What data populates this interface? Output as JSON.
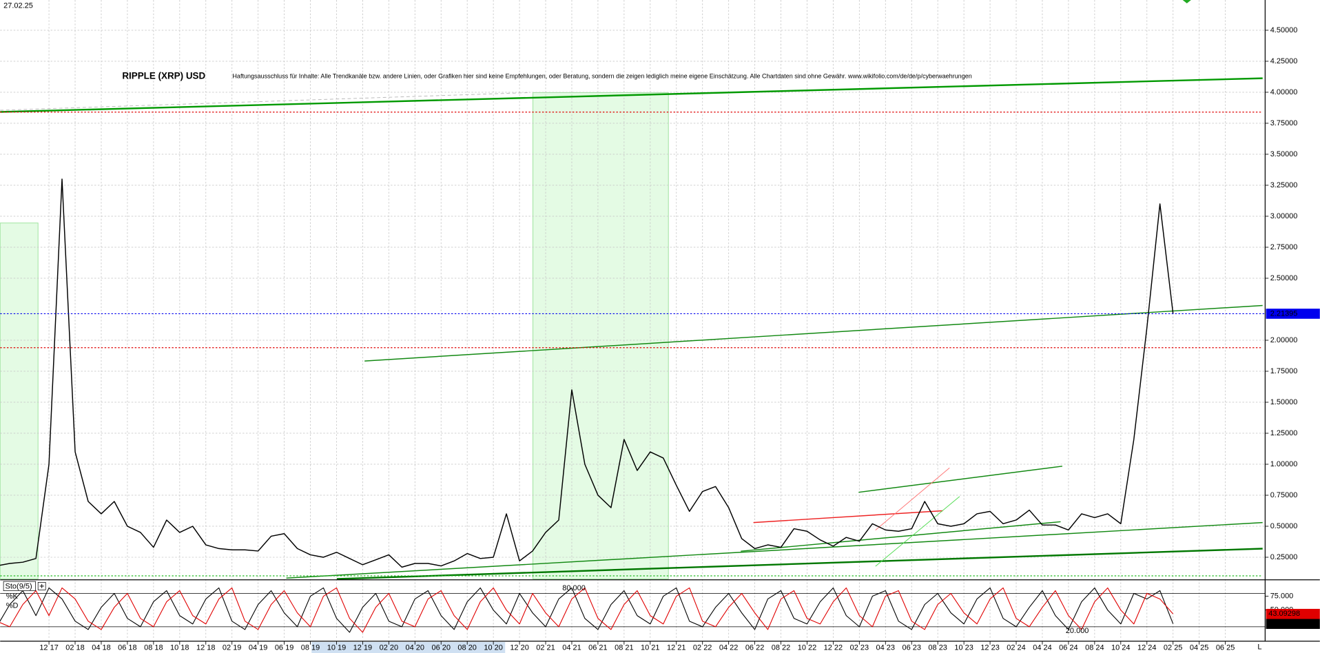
{
  "chart_data": {
    "type": "line",
    "date": "27.02.25",
    "title": "RIPPLE (XRP) USD",
    "disclaimer": "Haftungsausschluss für Inhalte: Alle Trendkanäle bzw. andere Linien, oder Grafiken hier sind keine Empfehlungen, oder Beratung, sondern die zeigen lediglich meine eigene Einschätzung. Alle Chartdaten sind ohne Gewähr. www.wikifolio.com/de/de/p/cyberwaehrungen",
    "categories": [
      null,
      null,
      null,
      null,
      "12 17",
      null,
      "02 18",
      null,
      "04 18",
      null,
      "06 18",
      null,
      "08 18",
      null,
      "10 18",
      null,
      "12 18",
      null,
      "02 19",
      null,
      "04 19",
      null,
      "06 19",
      null,
      "08 19",
      null,
      "10 19",
      null,
      "12 19",
      null,
      "02 20",
      null,
      "04 20",
      null,
      "06 20",
      null,
      "08 20",
      null,
      "10 20",
      null,
      "12 20",
      null,
      "02 21",
      null,
      "04 21",
      null,
      "06 21",
      null,
      "08 21",
      null,
      "10 21",
      null,
      "12 21",
      null,
      "02 22",
      null,
      "04 22",
      null,
      "06 22",
      null,
      "08 22",
      null,
      "10 22",
      null,
      "12 22",
      null,
      "02 23",
      null,
      "04 23",
      null,
      "06 23",
      null,
      "08 23",
      null,
      "10 23",
      null,
      "12 23",
      null,
      "02 24",
      null,
      "04 24",
      null,
      "06 24",
      null,
      "08 24",
      null,
      "10 24",
      null,
      "12 24",
      null,
      "02 25",
      null,
      "04 25",
      null,
      "06 25",
      null,
      null
    ],
    "axis_end_label": "L",
    "series": [
      {
        "color": "#000000",
        "values": [
          0.18,
          0.2,
          0.21,
          0.24,
          1.0,
          3.3,
          1.1,
          0.7,
          0.6,
          0.7,
          0.5,
          0.45,
          0.33,
          0.55,
          0.45,
          0.5,
          0.35,
          0.32,
          0.31,
          0.31,
          0.3,
          0.42,
          0.44,
          0.32,
          0.27,
          0.25,
          0.29,
          0.24,
          0.19,
          0.23,
          0.27,
          0.17,
          0.2,
          0.2,
          0.18,
          0.22,
          0.28,
          0.24,
          0.25,
          0.6,
          0.22,
          0.3,
          0.45,
          0.55,
          1.6,
          1.0,
          0.75,
          0.65,
          1.2,
          0.95,
          1.1,
          1.05,
          0.83,
          0.62,
          0.78,
          0.82,
          0.65,
          0.4,
          0.32,
          0.35,
          0.33,
          0.48,
          0.46,
          0.39,
          0.34,
          0.41,
          0.38,
          0.52,
          0.47,
          0.46,
          0.48,
          0.7,
          0.52,
          0.5,
          0.52,
          0.6,
          0.62,
          0.52,
          0.55,
          0.63,
          0.51,
          0.51,
          0.47,
          0.6,
          0.57,
          0.6,
          0.52,
          1.2,
          2.1,
          3.1,
          2.21395,
          null,
          null,
          null,
          null,
          null,
          null
        ]
      }
    ],
    "ylim": [
      0.075,
      4.744
    ],
    "yticks": [
      {
        "value": 0.25,
        "label": "0.25000"
      },
      {
        "value": 0.5,
        "label": "0.50000"
      },
      {
        "value": 0.75,
        "label": "0.75000"
      },
      {
        "value": 1,
        "label": "1.00000"
      },
      {
        "value": 1.25,
        "label": "1.25000"
      },
      {
        "value": 1.5,
        "label": "1.50000"
      },
      {
        "value": 1.75,
        "label": "1.75000"
      },
      {
        "value": 2,
        "label": "2.00000"
      },
      {
        "value": 2.5,
        "label": "2.50000"
      },
      {
        "value": 2.75,
        "label": "2.75000"
      },
      {
        "value": 3,
        "label": "3.00000"
      },
      {
        "value": 3.25,
        "label": "3.25000"
      },
      {
        "value": 3.5,
        "label": "3.50000"
      },
      {
        "value": 3.75,
        "label": "3.75000"
      },
      {
        "value": 4,
        "label": "4.00000"
      },
      {
        "value": 4.25,
        "label": "4.25000"
      },
      {
        "value": 4.5,
        "label": "4.50000"
      }
    ],
    "grid": true,
    "hlines": [
      {
        "value": 3.84,
        "color": "#e00000"
      },
      {
        "value": 1.94,
        "color": "#e00000"
      },
      {
        "value": 0.1,
        "color": "#22bb22"
      }
    ],
    "current_color": "#0000ee",
    "indicator": {
      "title": "Sto(9/5)",
      "ylim": [
        0,
        100
      ],
      "yticks": [
        {
          "value": 75,
          "label": "75.000"
        },
        {
          "value": 50,
          "label": "50.000"
        }
      ],
      "levels": [
        {
          "value": 80,
          "label": "80.000"
        },
        {
          "value": 20,
          "label": "20.000"
        }
      ],
      "series": [
        {
          "name": "%K",
          "color": "#000000",
          "values": [
            20,
            60,
            85,
            40,
            90,
            70,
            30,
            15,
            55,
            80,
            35,
            20,
            65,
            85,
            40,
            25,
            70,
            90,
            30,
            15,
            60,
            85,
            45,
            20,
            75,
            90,
            35,
            10,
            55,
            80,
            30,
            20,
            70,
            85,
            40,
            15,
            65,
            90,
            50,
            25,
            80,
            45,
            20,
            70,
            90,
            35,
            15,
            60,
            85,
            40,
            25,
            75,
            90,
            30,
            20,
            55,
            80,
            45,
            15,
            70,
            85,
            35,
            25,
            65,
            90,
            40,
            20,
            75,
            85,
            30,
            15,
            60,
            80,
            45,
            25,
            70,
            90,
            35,
            20,
            55,
            85,
            40,
            15,
            65,
            90,
            50,
            25,
            80,
            70,
            85,
            25.23061,
            null,
            null,
            null,
            null,
            null,
            null
          ]
        },
        {
          "name": "%D",
          "color": "#e00000",
          "values": [
            30,
            20,
            60,
            85,
            40,
            90,
            70,
            30,
            15,
            55,
            80,
            35,
            20,
            65,
            85,
            40,
            25,
            70,
            90,
            30,
            15,
            60,
            85,
            45,
            20,
            75,
            90,
            35,
            10,
            55,
            80,
            30,
            20,
            70,
            85,
            40,
            15,
            65,
            90,
            50,
            25,
            80,
            45,
            20,
            70,
            90,
            35,
            15,
            60,
            85,
            40,
            25,
            75,
            90,
            30,
            20,
            55,
            80,
            45,
            15,
            70,
            85,
            35,
            25,
            65,
            90,
            40,
            20,
            75,
            85,
            30,
            15,
            60,
            80,
            45,
            25,
            70,
            90,
            35,
            20,
            55,
            85,
            40,
            15,
            65,
            90,
            50,
            25,
            80,
            70,
            43.09298,
            null,
            null,
            null,
            null,
            null,
            null
          ]
        }
      ]
    }
  }
}
